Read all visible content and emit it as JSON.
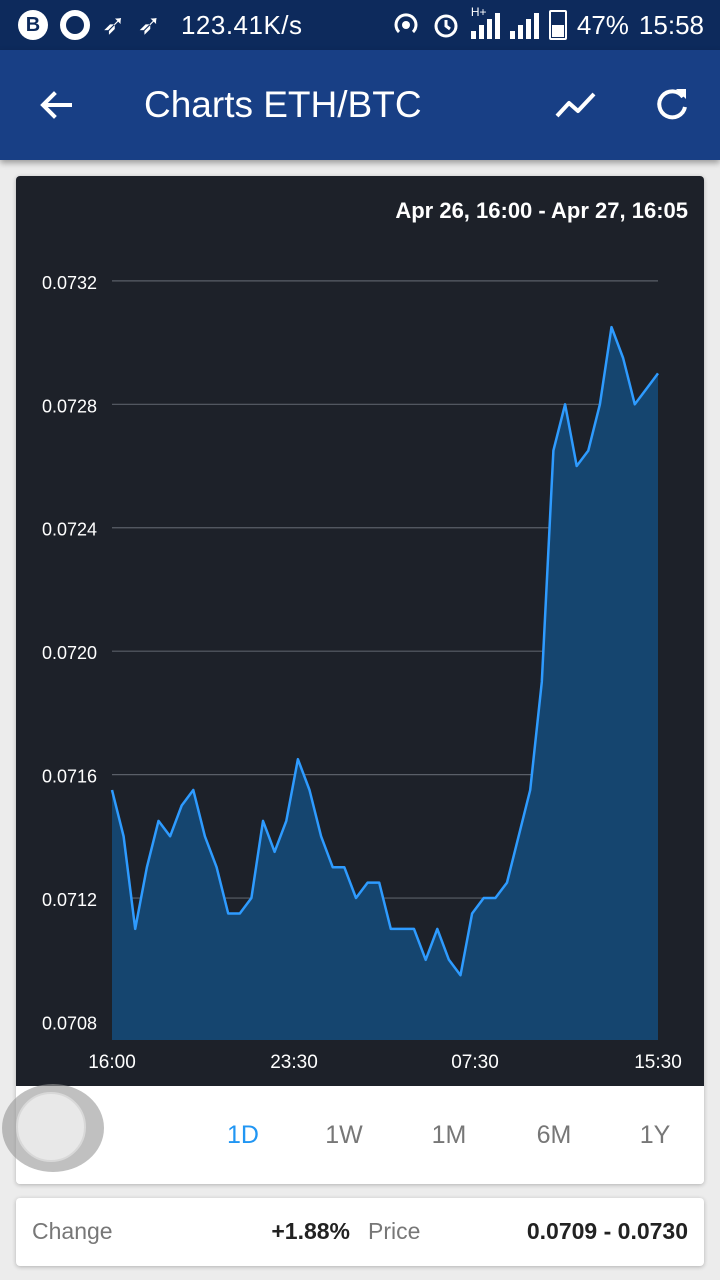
{
  "status_bar": {
    "speed": "123.41K/s",
    "battery": "47%",
    "time": "15:58",
    "network_label": "H+",
    "icons": [
      "b-app-icon",
      "opera-icon",
      "bird-icon",
      "bird-icon",
      "hotspot-icon",
      "alarm-icon",
      "signal-icon",
      "signal-icon",
      "battery-icon"
    ]
  },
  "app_bar": {
    "title": "Charts ETH/BTC",
    "back_icon": "arrow-left-icon",
    "trend_icon": "trending-icon",
    "refresh_icon": "refresh-icon",
    "bg_color": "#183f85"
  },
  "chart": {
    "date_range": "Apr 26, 16:00 - Apr 27, 16:05"
  },
  "chart_data": {
    "type": "area",
    "x_tick_labels": [
      "16:00",
      "23:30",
      "07:30",
      "15:30"
    ],
    "y_tick_labels": [
      "0.0732",
      "0.0728",
      "0.0724",
      "0.0720",
      "0.0716",
      "0.0712",
      "0.0708"
    ],
    "yticks": [
      0.0732,
      0.0728,
      0.0724,
      0.072,
      0.0716,
      0.0712,
      0.0708
    ],
    "ylim": [
      0.07074,
      0.0733
    ],
    "xlim": [
      0,
      48
    ],
    "grid": true,
    "line_color": "#2e9bff",
    "fill_color": "#15456f",
    "values": [
      0.07155,
      0.0714,
      0.0711,
      0.0713,
      0.07145,
      0.0714,
      0.0715,
      0.07155,
      0.0714,
      0.0713,
      0.07115,
      0.07115,
      0.0712,
      0.07145,
      0.07135,
      0.07145,
      0.07165,
      0.07155,
      0.0714,
      0.0713,
      0.0713,
      0.0712,
      0.07125,
      0.07125,
      0.0711,
      0.0711,
      0.0711,
      0.071,
      0.0711,
      0.071,
      0.07095,
      0.07115,
      0.0712,
      0.0712,
      0.07125,
      0.0714,
      0.07155,
      0.0719,
      0.07265,
      0.0728,
      0.0726,
      0.07265,
      0.0728,
      0.07305,
      0.07295,
      0.0728,
      0.07285,
      0.0729
    ]
  },
  "ranges": [
    {
      "label": "1D",
      "active": true
    },
    {
      "label": "1W",
      "active": false
    },
    {
      "label": "1M",
      "active": false
    },
    {
      "label": "6M",
      "active": false
    },
    {
      "label": "1Y",
      "active": false
    }
  ],
  "info": {
    "change_label": "Change",
    "change_value": "+1.88%",
    "price_label": "Price",
    "price_value": "0.0709 - 0.0730"
  }
}
